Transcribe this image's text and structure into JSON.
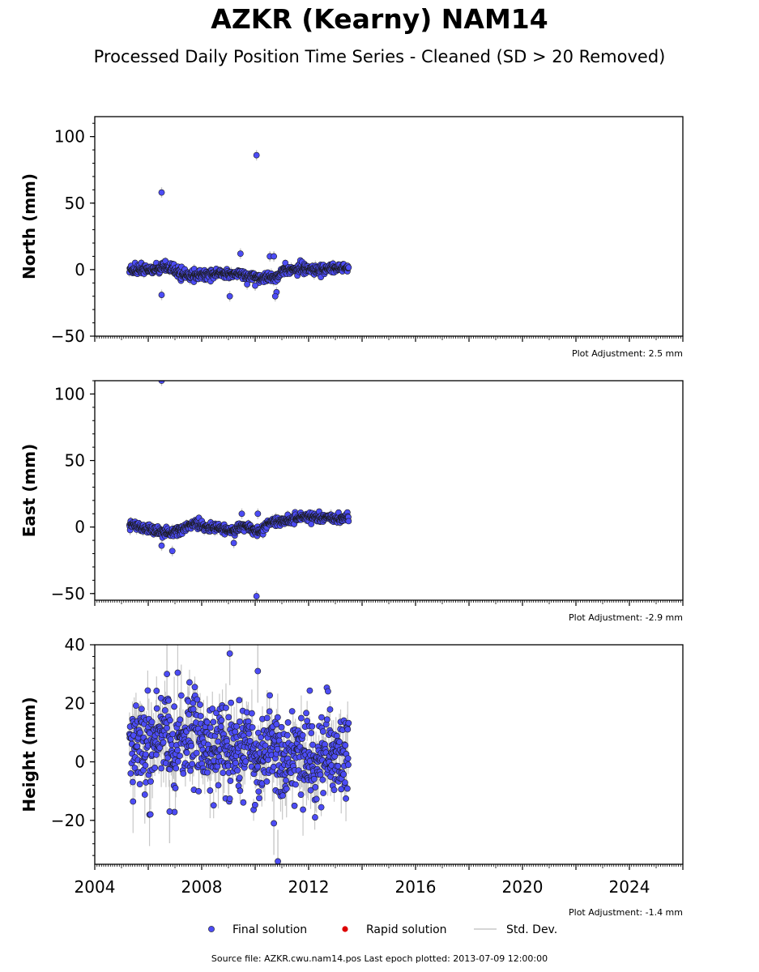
{
  "title": "AZKR (Kearny) NAM14",
  "subtitle": "Processed Daily Position Time Series - Cleaned (SD > 20 Removed)",
  "source_note": "Source file: AZKR.cwu.nam14.pos  Last epoch plotted: 2013-07-09 12:00:00",
  "colors": {
    "final": "#4c4cf5",
    "rapid": "#dd0000",
    "stddev": "#c8c8c8",
    "edge": "#1a1a1a"
  },
  "chart_data": [
    {
      "type": "scatter",
      "panel": "north",
      "ylabel": "North (mm)",
      "xlim": [
        2004,
        2026
      ],
      "ylim": [
        -50,
        115
      ],
      "yticks": [
        -50,
        0,
        50,
        100
      ],
      "adjustment": "Plot Adjustment: 2.5 mm",
      "series": [
        {
          "name": "Final solution",
          "x": [
            2005.3,
            2005.5,
            2005.8,
            2006.1,
            2006.3,
            2006.6,
            2006.9,
            2007.2,
            2007.5,
            2007.8,
            2008.1,
            2008.4,
            2008.7,
            2009.0,
            2009.3,
            2009.6,
            2009.9,
            2010.2,
            2010.5,
            2010.8,
            2011.1,
            2011.4,
            2011.7,
            2012.0,
            2012.3,
            2012.6,
            2012.9,
            2013.2,
            2013.5
          ],
          "y": [
            0,
            -1,
            0,
            -1,
            0,
            2,
            1,
            -3,
            -5,
            -4,
            -4,
            -3,
            -3,
            -4,
            -3,
            -4,
            -5,
            -6,
            -7,
            -5,
            0,
            0,
            1,
            1,
            0,
            0,
            1,
            1,
            1
          ]
        }
      ],
      "outliers": {
        "x": [
          2006.5,
          2010.05,
          2006.5,
          2009.05,
          2009.45,
          2010.55,
          2010.7,
          2010.8,
          2009.7,
          2010.0,
          2010.75
        ],
        "y": [
          58,
          86,
          -19,
          -20,
          12,
          10,
          10,
          -17,
          -11,
          -12,
          -20
        ]
      }
    },
    {
      "type": "scatter",
      "panel": "east",
      "ylabel": "East (mm)",
      "xlim": [
        2004,
        2026
      ],
      "ylim": [
        -55,
        110
      ],
      "yticks": [
        -50,
        0,
        50,
        100
      ],
      "adjustment": "Plot Adjustment: -2.9 mm",
      "series": [
        {
          "name": "Final solution",
          "x": [
            2005.3,
            2005.5,
            2005.8,
            2006.1,
            2006.3,
            2006.6,
            2006.9,
            2007.2,
            2007.5,
            2007.8,
            2008.1,
            2008.4,
            2008.7,
            2009.0,
            2009.3,
            2009.6,
            2009.9,
            2010.2,
            2010.5,
            2010.8,
            2011.1,
            2011.4,
            2011.7,
            2012.0,
            2012.3,
            2012.6,
            2012.9,
            2013.2,
            2013.5
          ],
          "y": [
            2,
            1,
            -1,
            -2,
            -3,
            -4,
            -4,
            -2,
            1,
            2,
            0,
            0,
            -1,
            -3,
            -2,
            2,
            -2,
            -3,
            3,
            4,
            5,
            6,
            7,
            8,
            7,
            7,
            6,
            6,
            8
          ]
        }
      ],
      "outliers": {
        "x": [
          2006.5,
          2010.05,
          2006.9,
          2006.5,
          2009.2,
          2010.1,
          2009.5
        ],
        "y": [
          110,
          -52,
          -18,
          -14,
          -12,
          10,
          10
        ]
      }
    },
    {
      "type": "scatter",
      "panel": "height",
      "ylabel": "Height (mm)",
      "xlim": [
        2004,
        2026
      ],
      "ylim": [
        -35,
        40
      ],
      "yticks": [
        -20,
        0,
        20,
        40
      ],
      "xticks": [
        2004,
        2008,
        2012,
        2016,
        2020,
        2024
      ],
      "adjustment": "Plot Adjustment: -1.4 mm",
      "series": [
        {
          "name": "Final solution",
          "x": [
            2005.3,
            2005.5,
            2005.8,
            2006.1,
            2006.3,
            2006.6,
            2006.9,
            2007.2,
            2007.5,
            2007.8,
            2008.1,
            2008.4,
            2008.7,
            2009.0,
            2009.3,
            2009.6,
            2009.9,
            2010.2,
            2010.5,
            2010.8,
            2011.1,
            2011.4,
            2011.7,
            2012.0,
            2012.3,
            2012.6,
            2012.9,
            2013.2,
            2013.5
          ],
          "y": [
            5,
            8,
            6,
            4,
            7,
            9,
            5,
            6,
            10,
            12,
            4,
            3,
            6,
            2,
            5,
            7,
            4,
            -1,
            6,
            4,
            0,
            3,
            4,
            2,
            1,
            2,
            1,
            2,
            3
          ]
        }
      ],
      "outliers": {
        "x": [
          2009.05,
          2010.1,
          2006.7,
          2010.85,
          2010.7,
          2006.8
        ],
        "y": [
          37,
          31,
          30,
          -34,
          -21,
          -17
        ]
      }
    }
  ],
  "legend": {
    "final": "Final solution",
    "rapid": "Rapid solution",
    "stddev": "Std. Dev."
  }
}
